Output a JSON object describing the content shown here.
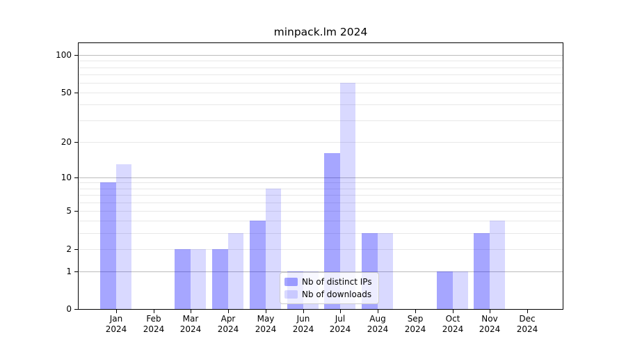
{
  "title": "minpack.lm 2024",
  "chart_data": {
    "type": "bar",
    "title": "minpack.lm 2024",
    "categories": [
      "Jan 2024",
      "Feb 2024",
      "Mar 2024",
      "Apr 2024",
      "May 2024",
      "Jun 2024",
      "Jul 2024",
      "Aug 2024",
      "Sep 2024",
      "Oct 2024",
      "Nov 2024",
      "Dec 2024"
    ],
    "series": [
      {
        "name": "Nb of distinct IPs",
        "color": "rgba(0,0,255,0.35)",
        "values": [
          9,
          0,
          2,
          2,
          4,
          1,
          16,
          3,
          0,
          1,
          3,
          0
        ]
      },
      {
        "name": "Nb of downloads",
        "color": "rgba(0,0,255,0.15)",
        "values": [
          13,
          0,
          2,
          3,
          8,
          1,
          60,
          3,
          0,
          1,
          4,
          0
        ]
      }
    ],
    "xlabel": "",
    "ylabel": "",
    "y_scale": "log1p",
    "ylim": [
      0,
      125
    ],
    "y_ticks": [
      0,
      1,
      2,
      5,
      10,
      20,
      50,
      100
    ],
    "gridlines_major": [
      1,
      10,
      100
    ],
    "gridlines_minor": [
      2,
      3,
      4,
      5,
      6,
      7,
      8,
      9,
      20,
      30,
      40,
      50,
      60,
      70,
      80,
      90
    ],
    "grid": true,
    "legend_position": "inside-bottom-center",
    "colors": {
      "grid_major": "#bbbbbb",
      "grid_minor": "#e8e8e8",
      "axis": "#000000",
      "background": "#ffffff"
    }
  }
}
